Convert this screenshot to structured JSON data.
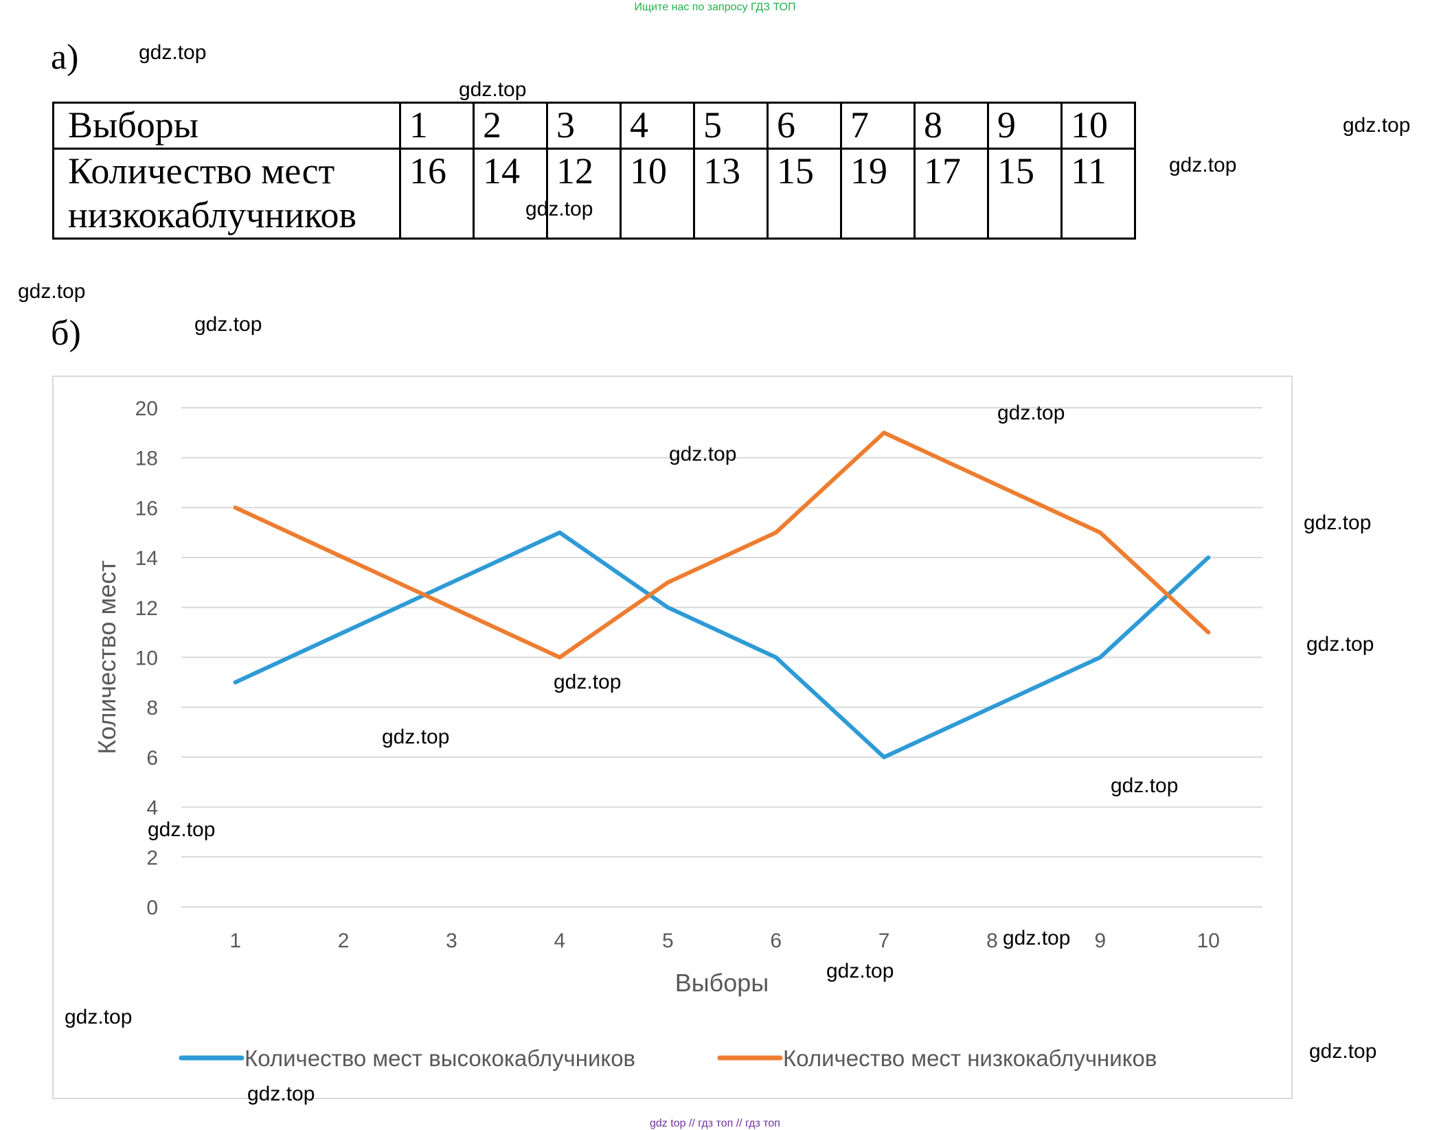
{
  "banner": "Ищите нас по запросу ГДЗ ТОП",
  "part_a": "а)",
  "part_b": "б)",
  "table": {
    "header_label": "Выборы",
    "row_label": "Количество мест низкокаблучников",
    "columns": [
      "1",
      "2",
      "3",
      "4",
      "5",
      "6",
      "7",
      "8",
      "9",
      "10"
    ],
    "values": [
      "16",
      "14",
      "12",
      "10",
      "13",
      "15",
      "19",
      "17",
      "15",
      "11"
    ]
  },
  "watermark": "gdz.top",
  "footer": "gdz top  //  гдз топ  //  гдз топ",
  "chart_data": {
    "type": "line",
    "xlabel": "Выборы",
    "ylabel": "Количество мест",
    "ylim": [
      0,
      20
    ],
    "y_ticks": [
      "0",
      "2",
      "4",
      "6",
      "8",
      "10",
      "12",
      "14",
      "16",
      "18",
      "20"
    ],
    "categories": [
      "1",
      "2",
      "3",
      "4",
      "5",
      "6",
      "7",
      "8",
      "9",
      "10"
    ],
    "grid": true,
    "legend_position": "bottom",
    "series": [
      {
        "name": "Количество мест высококаблучников",
        "color": "#2e9bd6",
        "values": [
          9,
          11,
          13,
          15,
          12,
          10,
          6,
          8,
          10,
          14
        ]
      },
      {
        "name": "Количество мест низкокаблучников",
        "color": "#ed7d31",
        "values": [
          16,
          14,
          12,
          10,
          13,
          15,
          19,
          17,
          15,
          11
        ]
      }
    ]
  }
}
